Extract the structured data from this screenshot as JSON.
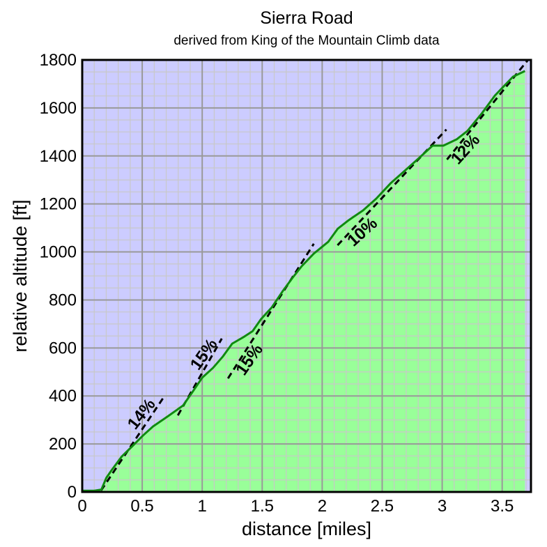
{
  "chart_data": {
    "type": "area",
    "title": "Sierra Road",
    "subtitle": "derived from King of the Mountain Climb data",
    "xlabel": "distance [miles]",
    "ylabel": "relative altitude [ft]",
    "xlim": [
      0,
      3.74
    ],
    "ylim": [
      0,
      1800
    ],
    "x_ticks": [
      0,
      0.5,
      1,
      1.5,
      2,
      2.5,
      3,
      3.5
    ],
    "x_tick_labels": [
      "0",
      "0.5",
      "1",
      "1.5",
      "2",
      "2.5",
      "3",
      "3.5"
    ],
    "y_ticks": [
      0,
      200,
      400,
      600,
      800,
      1000,
      1200,
      1400,
      1600,
      1800
    ],
    "y_tick_labels": [
      "0",
      "200",
      "400",
      "600",
      "800",
      "1000",
      "1200",
      "1400",
      "1600",
      "1800"
    ],
    "grid": true,
    "minor_grid": {
      "x_step": 0.1,
      "y_step": 50
    },
    "colors": {
      "background": "#ccccff",
      "fill": "#99ff99",
      "line": "#108a10",
      "major_grid": "#999999",
      "minor_grid": "#c8c8c8",
      "slope_lines": "#000000"
    },
    "series": [
      {
        "x": [
          0,
          0.1,
          0.16,
          0.2,
          0.244,
          0.33,
          0.42,
          0.506,
          0.59,
          0.71,
          0.84,
          0.91,
          1.0,
          1.09,
          1.17,
          1.25,
          1.35,
          1.42,
          1.49,
          1.58,
          1.67,
          1.76,
          1.83,
          1.93,
          2.05,
          2.13,
          2.22,
          2.34,
          2.45,
          2.57,
          2.69,
          2.8,
          2.92,
          3.01,
          3.12,
          3.21,
          3.33,
          3.44,
          3.59,
          3.69
        ],
        "y": [
          5,
          5,
          10,
          58,
          90,
          148,
          192,
          235,
          273,
          314,
          360,
          410,
          476,
          517,
          563,
          618,
          647,
          670,
          720,
          769,
          836,
          897,
          941,
          993,
          1042,
          1097,
          1132,
          1173,
          1222,
          1286,
          1339,
          1388,
          1443,
          1443,
          1469,
          1504,
          1577,
          1652,
          1730,
          1754
        ]
      }
    ],
    "annotations": [
      {
        "label": "14%",
        "line": [
          [
            0.157,
            6
          ],
          [
            0.686,
            400
          ]
        ],
        "text_at": [
          0.5,
          322
        ],
        "angle": -52
      },
      {
        "label": "15%",
        "line": [
          [
            0.797,
            319
          ],
          [
            1.163,
            639
          ]
        ],
        "text_at": [
          1.02,
          571
        ],
        "angle": -55
      },
      {
        "label": "15%",
        "line": [
          [
            1.215,
            473
          ],
          [
            1.93,
            1034
          ]
        ],
        "text_at": [
          1.4,
          549
        ],
        "angle": -55
      },
      {
        "label": "10%",
        "line": [
          [
            2.128,
            1028
          ],
          [
            3.035,
            1510
          ]
        ],
        "text_at": [
          2.34,
          1080
        ],
        "angle": -42
      },
      {
        "label": "12%",
        "line": [
          [
            3.04,
            1385
          ],
          [
            3.715,
            1800
          ]
        ],
        "text_at": [
          3.2,
          1425
        ],
        "angle": -48
      }
    ]
  }
}
